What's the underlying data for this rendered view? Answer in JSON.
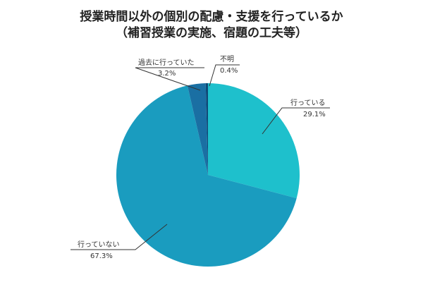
{
  "chart_data": {
    "type": "pie",
    "title": "授業時間以外の個別の配慮・支援を行っているか",
    "subtitle": "（補習授業の実施、宿題の工夫等）",
    "categories": [
      "行っている",
      "行っていない",
      "過去に行っていた",
      "不明"
    ],
    "values": [
      29.1,
      67.3,
      3.2,
      0.4
    ],
    "value_labels": [
      "29.1%",
      "67.3%",
      "3.2%",
      "0.4%"
    ],
    "colors": [
      "#1ec0cc",
      "#1a9cbf",
      "#1a6fa3",
      "#0d4a78"
    ]
  }
}
